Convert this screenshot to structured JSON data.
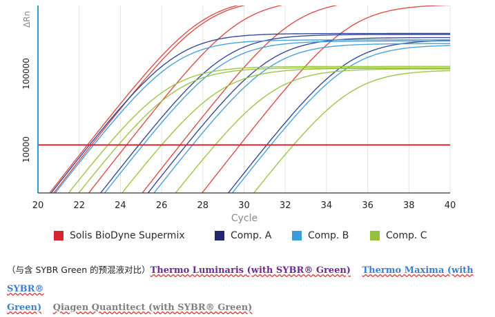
{
  "chart_data": {
    "type": "line",
    "title": "",
    "xlabel": "Cycle",
    "ylabel": "ΔRn",
    "y_scale": "log",
    "xlim": [
      20,
      40
    ],
    "x_ticks": [
      20,
      22,
      24,
      26,
      28,
      30,
      32,
      34,
      36,
      38,
      40
    ],
    "y_ticks": [
      10000,
      100000
    ],
    "y_tick_labels": [
      "10000",
      "100000"
    ],
    "grid": "vertical",
    "threshold": 11500,
    "threshold_color": "#d4262c",
    "legend_position": "bottom",
    "series": [
      {
        "name": "Solis BioDyne Supermix",
        "color": "#d9453d",
        "curves": [
          {
            "ct": 22.4,
            "plateau": 1000000
          },
          {
            "ct": 22.6,
            "plateau": 980000
          },
          {
            "ct": 24.3,
            "plateau": 960000
          },
          {
            "ct": 26.9,
            "plateau": 950000
          },
          {
            "ct": 29.8,
            "plateau": 820000
          }
        ]
      },
      {
        "name": "Comp. A",
        "color": "#2a3f8f",
        "curves": [
          {
            "ct": 22.5,
            "plateau": 340000
          },
          {
            "ct": 24.9,
            "plateau": 330000
          },
          {
            "ct": 27.2,
            "plateau": 300000
          },
          {
            "ct": 31.1,
            "plateau": 280000
          }
        ]
      },
      {
        "name": "Comp. B",
        "color": "#3d9dd9",
        "curves": [
          {
            "ct": 22.7,
            "plateau": 280000
          },
          {
            "ct": 25.1,
            "plateau": 270000
          },
          {
            "ct": 27.5,
            "plateau": 250000
          },
          {
            "ct": 31.3,
            "plateau": 240000
          }
        ]
      },
      {
        "name": "Comp. C",
        "color": "#97c23e",
        "curves": [
          {
            "ct": 23.4,
            "plateau": 125000
          },
          {
            "ct": 23.9,
            "plateau": 120000
          },
          {
            "ct": 26.0,
            "plateau": 118000
          },
          {
            "ct": 28.6,
            "plateau": 116000
          },
          {
            "ct": 32.4,
            "plateau": 112000
          }
        ]
      }
    ]
  },
  "legend": {
    "items": [
      {
        "label": "Solis BioDyne Supermix",
        "color": "#d4262c"
      },
      {
        "label": "Comp. A",
        "color": "#23286b"
      },
      {
        "label": "Comp. B",
        "color": "#3a9bd6"
      },
      {
        "label": "Comp. C",
        "color": "#93c13d"
      }
    ]
  },
  "caption": {
    "prefix": "（与含 SYBR Green 的预混液对比）",
    "link1": "Thermo Luminaris (with SYBR® Green)",
    "link2": "Thermo Maxima (with SYBR®",
    "link2_cont": "Green)",
    "link3": "Qiagen Quantitect (with SYBR® Green)"
  }
}
